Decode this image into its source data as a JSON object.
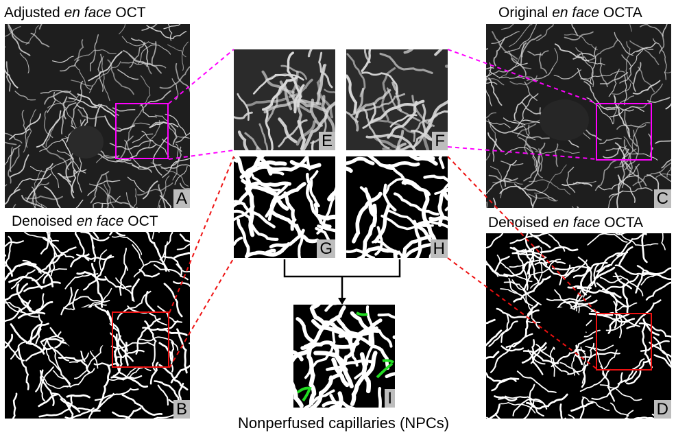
{
  "labels": {
    "a_prefix": "Adjusted ",
    "a_em": "en face",
    "a_suffix": " OCT",
    "c_prefix": "Original ",
    "c_em": "en face",
    "c_suffix": " OCTA",
    "b_prefix": "Denoised ",
    "b_em": "en face",
    "b_suffix": " OCT",
    "d_prefix": "Denoised ",
    "d_em": "en face",
    "d_suffix": " OCTA",
    "caption": "Nonperfused capillaries (NPCs)"
  },
  "panels": {
    "A": "A",
    "B": "B",
    "C": "C",
    "D": "D",
    "E": "E",
    "F": "F",
    "G": "G",
    "H": "H",
    "I": "I"
  },
  "colors": {
    "magenta": "#ff00ff",
    "red": "#ee1111",
    "green": "#22dd22",
    "vessel_raw": "#dcdcdc",
    "vessel_denoised": "#ffffff"
  }
}
